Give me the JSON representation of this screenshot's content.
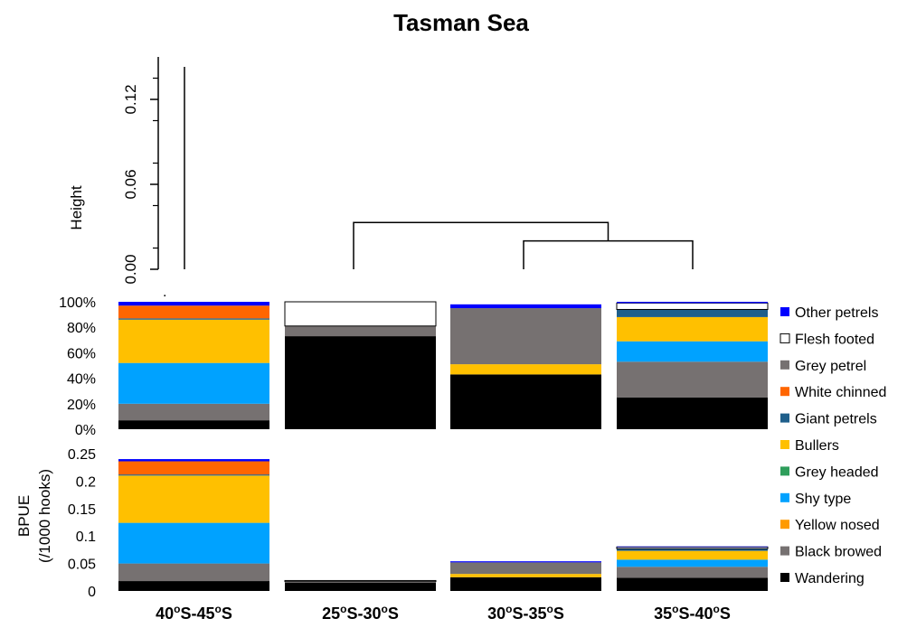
{
  "chart_data": [
    {
      "type": "dendrogram",
      "title": "Tasman Sea",
      "ylabel": "Height",
      "yticks": [
        "0.00",
        "0.06",
        "0.12"
      ],
      "ylim": [
        0,
        0.15
      ],
      "leaves": [
        "40oS-45oS",
        "25oS-30oS",
        "30oS-35oS",
        "35oS-40oS"
      ],
      "merges": [
        {
          "left": "30oS-35oS",
          "right": "35oS-40oS",
          "height": 0.02
        },
        {
          "left": "25oS-30oS",
          "right": "(30oS-35oS, 35oS-40oS)",
          "height": 0.033
        },
        {
          "left": "40oS-45oS",
          "right": "(25oS-30oS, 30oS-35oS, 35oS-40oS)",
          "height": 0.143
        }
      ]
    },
    {
      "type": "bar",
      "stacked": true,
      "normalized": true,
      "categories": [
        "40oS-45oS",
        "25oS-30oS",
        "30oS-35oS",
        "35oS-40oS"
      ],
      "yticks": [
        "0%",
        "20%",
        "40%",
        "60%",
        "80%",
        "100%"
      ],
      "ylim": [
        0,
        100
      ],
      "series": [
        {
          "name": "Wandering",
          "values": [
            7,
            73,
            43,
            25
          ]
        },
        {
          "name": "Black browed",
          "values": [
            13,
            8,
            0,
            28
          ]
        },
        {
          "name": "Yellow nosed",
          "values": [
            0,
            0,
            0,
            0
          ]
        },
        {
          "name": "Shy type",
          "values": [
            32,
            0,
            0,
            16
          ]
        },
        {
          "name": "Grey headed",
          "values": [
            0,
            0,
            0,
            0
          ]
        },
        {
          "name": "Bullers",
          "values": [
            34,
            0,
            8,
            19
          ]
        },
        {
          "name": "Giant petrels",
          "values": [
            1,
            0,
            0,
            6
          ]
        },
        {
          "name": "White chinned",
          "values": [
            10,
            0,
            0,
            0
          ]
        },
        {
          "name": "Grey petrel",
          "values": [
            0,
            0,
            44,
            0
          ]
        },
        {
          "name": "Flesh footed",
          "values": [
            0,
            19,
            0,
            5
          ]
        },
        {
          "name": "Other petrels",
          "values": [
            3,
            0,
            3,
            1
          ]
        }
      ]
    },
    {
      "type": "bar",
      "stacked": true,
      "categories": [
        "40oS-45oS",
        "25oS-30oS",
        "30oS-35oS",
        "35oS-40oS"
      ],
      "ylabel": "BPUE",
      "ylabel2": "(/1000 hooks)",
      "yticks": [
        "0",
        "0.05",
        "0.1",
        "0.15",
        "0.2",
        "0.25"
      ],
      "ylim": [
        0,
        0.25
      ],
      "series": [
        {
          "name": "Wandering",
          "values": [
            0.018,
            0.015,
            0.025,
            0.024
          ]
        },
        {
          "name": "Black browed",
          "values": [
            0.032,
            0.002,
            0.0,
            0.02
          ]
        },
        {
          "name": "Yellow nosed",
          "values": [
            0.0,
            0.0,
            0.0,
            0.0
          ]
        },
        {
          "name": "Shy type",
          "values": [
            0.074,
            0.0,
            0.0,
            0.013
          ]
        },
        {
          "name": "Grey headed",
          "values": [
            0.0,
            0.0,
            0.0,
            0.0
          ]
        },
        {
          "name": "Bullers",
          "values": [
            0.086,
            0.0,
            0.006,
            0.016
          ]
        },
        {
          "name": "Giant petrels",
          "values": [
            0.002,
            0.0,
            0.0,
            0.004
          ]
        },
        {
          "name": "White chinned",
          "values": [
            0.024,
            0.0,
            0.0,
            0.0
          ]
        },
        {
          "name": "Grey petrel",
          "values": [
            0.0,
            0.0,
            0.021,
            0.0
          ]
        },
        {
          "name": "Flesh footed",
          "values": [
            0.0,
            0.002,
            0.0,
            0.003
          ]
        },
        {
          "name": "Other petrels",
          "values": [
            0.004,
            0.0,
            0.002,
            0.001
          ]
        }
      ]
    }
  ],
  "legend": [
    {
      "name": "Other petrels",
      "color": "#0000ff"
    },
    {
      "name": "Flesh footed",
      "color": "#ffffff"
    },
    {
      "name": "Grey petrel",
      "color": "#767171"
    },
    {
      "name": "White chinned",
      "color": "#ff6600"
    },
    {
      "name": "Giant petrels",
      "color": "#1f5f8b"
    },
    {
      "name": "Bullers",
      "color": "#ffc000"
    },
    {
      "name": "Grey headed",
      "color": "#2e9e5b"
    },
    {
      "name": "Shy type",
      "color": "#00a2ff"
    },
    {
      "name": "Yellow nosed",
      "color": "#ff9a00"
    },
    {
      "name": "Black browed",
      "color": "#767171"
    },
    {
      "name": "Wandering",
      "color": "#000000"
    }
  ],
  "category_labels": [
    {
      "pre": "40",
      "s1": "o",
      "mid": "S-45",
      "s2": "o",
      "post": "S"
    },
    {
      "pre": "25",
      "s1": "o",
      "mid": "S-30",
      "s2": "o",
      "post": "S"
    },
    {
      "pre": "30",
      "s1": "o",
      "mid": "S-35",
      "s2": "o",
      "post": "S"
    },
    {
      "pre": "35",
      "s1": "o",
      "mid": "S-40",
      "s2": "o",
      "post": "S"
    }
  ]
}
